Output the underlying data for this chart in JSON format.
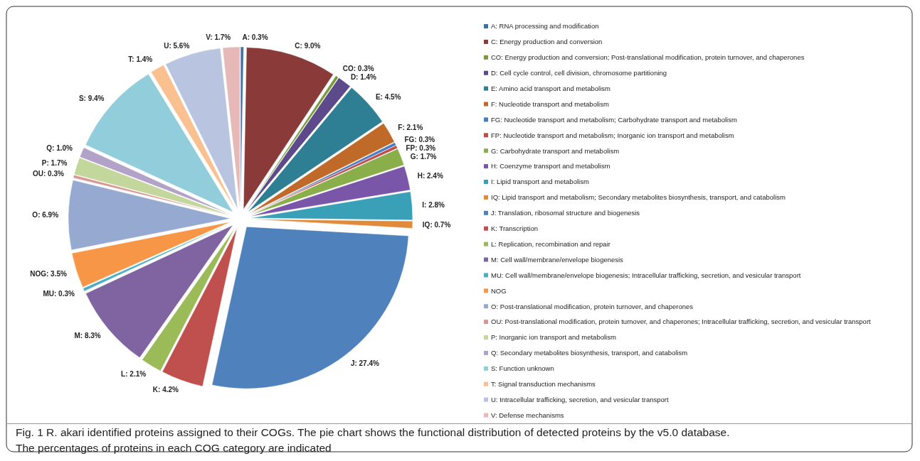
{
  "chart_data": {
    "type": "pie",
    "categories": [
      "A: RNA processing and modification",
      "C: Energy production and conversion",
      "CO:  Energy production and conversion; Post-translational modification, protein turnover, and chaperones",
      "D:  Cell cycle control, cell division, chromosome partitioning",
      "E: Amino acid transport and metabolism",
      "F:  Nucleotide transport and metabolism",
      "FG:  Nucleotide transport and metabolism; Carbohydrate transport and metabolism",
      "FP:  Nucleotide transport and metabolism; Inorganic ion transport and metabolism",
      "G: Carbohydrate transport and metabolism",
      "H: Coenzyme transport and metabolism",
      "I: Lipid transport and metabolism",
      "IQ: Lipid transport and metabolism; Secondary metabolites biosynthesis, transport, and catabolism",
      "J: Translation, ribosomal structure and biogenesis",
      "K: Transcription",
      "L: Replication, recombination and repair",
      "M: Cell wall/membrane/envelope biogenesis",
      "MU: Cell wall/membrane/envelope biogenesis; Intracellular trafficking, secretion, and vesicular transport",
      "NOG",
      "O:  Post-translational modification, protein turnover, and chaperones",
      "OU: Post-translational modification, protein turnover, and chaperones; Intracellular trafficking, secretion, and vesicular transport",
      "P:  Inorganic ion transport and metabolism",
      "Q: Secondary metabolites biosynthesis, transport, and catabolism",
      "S: Function unknown",
      "T:  Signal transduction mechanisms",
      "U: Intracellular trafficking, secretion, and vesicular transport",
      "V: Defense mechanisms"
    ],
    "values": [
      0.3,
      9.0,
      0.3,
      1.4,
      4.5,
      2.1,
      0.3,
      0.3,
      1.7,
      2.4,
      2.8,
      0.7,
      27.4,
      4.2,
      2.1,
      8.3,
      0.3,
      3.5,
      6.9,
      0.3,
      1.7,
      1.0,
      9.4,
      1.4,
      5.6,
      1.7
    ],
    "value_labels": [
      "A: 0.3%",
      "C: 9.0%",
      "CO: 0.3%",
      "D: 1.4%",
      "E: 4.5%",
      "F: 2.1%",
      "FG: 0.3%",
      "FP: 0.3%",
      "G: 1.7%",
      "H: 2.4%",
      "I: 2.8%",
      "IQ: 0.7%",
      "J: 27.4%",
      "K: 4.2%",
      "L: 2.1%",
      "M: 8.3%",
      "MU: 0.3%",
      "NOG: 3.5%",
      "O: 6.9%",
      "OU: 0.3%",
      "P: 1.7%",
      "Q: 1.0%",
      "S: 9.4%",
      "T: 1.4%",
      "U: 5.6%",
      "V: 1.7%"
    ],
    "colors": [
      "#3d6fa8",
      "#8b3a3a",
      "#7a9a3a",
      "#5c4a8a",
      "#2e7f94",
      "#c06a2a",
      "#4a7ac0",
      "#c04a4a",
      "#8aae4a",
      "#7a56a8",
      "#3aa0b8",
      "#e08a3a",
      "#4f81bd",
      "#c0504d",
      "#9bbb59",
      "#8064a2",
      "#4bacc6",
      "#f79646",
      "#95a9d1",
      "#d99694",
      "#c3d69b",
      "#b3a2c7",
      "#92cddc",
      "#fac090",
      "#b9c5e0",
      "#e6b9b8"
    ],
    "legend": "right",
    "annotations": [
      "Fig. 1 R. akari identified proteins assigned to their COGs. The pie chart shows the functional distribution of detected proteins by the v5.0 database. The percentages of proteins in each COG category are indicated"
    ]
  }
}
